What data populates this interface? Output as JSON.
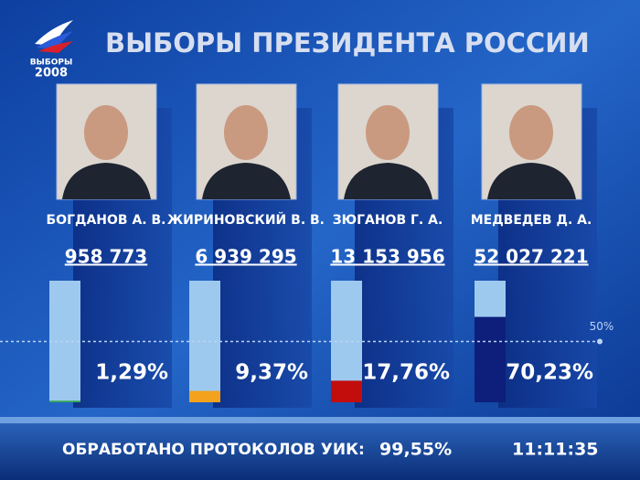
{
  "logo": {
    "line1": "ВЫБОРЫ",
    "line2": "2008"
  },
  "chart_data": {
    "type": "bar",
    "title": "ВЫБОРЫ ПРЕЗИДЕНТА РОССИИ",
    "categories": [
      "БОГДАНОВ А. В.",
      "ЖИРИНОВСКИЙ  В. В.",
      "ЗЮГАНОВ Г. А.",
      "МЕДВЕДЕВ Д. А."
    ],
    "vote_labels": [
      "958 773",
      "6 939 295",
      "13 153 956",
      "52 027 221"
    ],
    "values": [
      1.29,
      9.37,
      17.76,
      70.23
    ],
    "value_labels": [
      "1,29%",
      "9,37%",
      "17,76%",
      "70,23%"
    ],
    "colors": [
      "#2fa84f",
      "#f2a21c",
      "#c30d0d",
      "#0d1f7a"
    ],
    "ylim": [
      0,
      100
    ],
    "reference_line": {
      "value": 50,
      "label": "50%"
    }
  },
  "footer": {
    "label": "ОБРАБОТАНО ПРОТОКОЛОВ УИК:",
    "processed": "99,55%",
    "time": "11:11:35"
  }
}
